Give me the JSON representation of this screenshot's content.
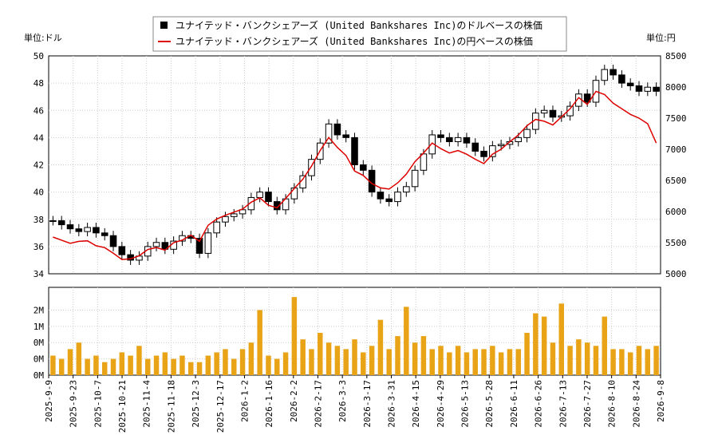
{
  "chart_data": {
    "type": "candlestick-line",
    "legend": [
      {
        "name": "ユナイテッド・バンクシェアーズ (United Bankshares Inc)のドルベースの株価",
        "color": "#000000"
      },
      {
        "name": "ユナイテッド・バンクシェアーズ (United Bankshares Inc)の円ベースの株価",
        "color": "#dd0000"
      }
    ],
    "left_unit": "単位:ドル",
    "right_unit": "単位:円",
    "y_left": {
      "min": 34,
      "max": 50,
      "ticks": [
        "34",
        "36",
        "38",
        "40",
        "42",
        "44",
        "46",
        "48",
        "50"
      ]
    },
    "y_right": {
      "min": 5000,
      "max": 8500,
      "ticks": [
        "5000",
        "5500",
        "6000",
        "6500",
        "7000",
        "7500",
        "8000",
        "8500"
      ]
    },
    "volume_axis": {
      "ticks": [
        "0M",
        "0M",
        "0M",
        "1M",
        "2M"
      ]
    },
    "x_ticks": [
      "2025-9-9",
      "2025-9-23",
      "2025-10-7",
      "2025-10-21",
      "2025-11-4",
      "2025-11-18",
      "2025-12-3",
      "2025-12-17",
      "2026-1-2",
      "2026-1-16",
      "2026-2-2",
      "2026-2-17",
      "2026-3-3",
      "2026-3-17",
      "2026-3-31",
      "2026-4-15",
      "2026-4-29",
      "2026-5-13",
      "2026-5-28",
      "2026-6-11",
      "2026-6-26",
      "2026-7-13",
      "2026-7-27",
      "2026-8-10",
      "2026-8-24",
      "2026-9-8"
    ],
    "usd_close": [
      37.9,
      37.6,
      37.3,
      37.1,
      37.4,
      37.0,
      36.8,
      36.0,
      35.4,
      35.0,
      35.3,
      36.0,
      36.3,
      35.8,
      36.4,
      36.8,
      36.6,
      35.5,
      37.0,
      37.8,
      38.2,
      38.4,
      38.7,
      39.6,
      40.0,
      39.3,
      38.7,
      39.5,
      40.3,
      41.2,
      42.4,
      43.6,
      45.0,
      44.2,
      44.0,
      42.0,
      41.6,
      40.0,
      39.5,
      39.3,
      40.0,
      40.4,
      41.6,
      42.8,
      44.2,
      44.0,
      43.7,
      44.0,
      43.6,
      43.0,
      42.6,
      43.4,
      43.5,
      43.7,
      44.0,
      44.6,
      45.8,
      46.0,
      45.5,
      45.6,
      46.3,
      47.2,
      46.6,
      48.2,
      49.0,
      48.6,
      48.0,
      47.8,
      47.4,
      47.7,
      47.4
    ],
    "jpy_close": [
      5590,
      5540,
      5490,
      5520,
      5530,
      5450,
      5420,
      5330,
      5230,
      5240,
      5290,
      5390,
      5420,
      5380,
      5500,
      5540,
      5620,
      5520,
      5780,
      5880,
      5940,
      5990,
      6040,
      6150,
      6220,
      6100,
      6060,
      6210,
      6370,
      6520,
      6730,
      6980,
      7190,
      7030,
      6900,
      6650,
      6580,
      6450,
      6380,
      6360,
      6460,
      6600,
      6800,
      6940,
      7100,
      7010,
      6940,
      6980,
      6920,
      6840,
      6770,
      6920,
      7000,
      7120,
      7230,
      7380,
      7480,
      7450,
      7390,
      7520,
      7650,
      7830,
      7720,
      7930,
      7880,
      7740,
      7650,
      7560,
      7500,
      7410,
      7100
    ],
    "volume_m": [
      0.6,
      0.5,
      0.8,
      1.0,
      0.5,
      0.6,
      0.4,
      0.5,
      0.7,
      0.6,
      0.9,
      0.5,
      0.6,
      0.7,
      0.5,
      0.6,
      0.4,
      0.4,
      0.6,
      0.7,
      0.8,
      0.5,
      0.8,
      1.0,
      2.0,
      0.6,
      0.5,
      0.7,
      2.4,
      1.1,
      0.8,
      1.3,
      1.0,
      0.9,
      0.8,
      1.1,
      0.7,
      0.9,
      1.7,
      0.8,
      1.2,
      2.1,
      1.0,
      1.2,
      0.8,
      0.9,
      0.7,
      0.9,
      0.7,
      0.8,
      0.8,
      0.9,
      0.7,
      0.8,
      0.8,
      1.3,
      1.9,
      1.8,
      1.0,
      2.2,
      0.9,
      1.1,
      1.0,
      0.9,
      1.8,
      0.8,
      0.8,
      0.7,
      0.9,
      0.8,
      0.9
    ]
  }
}
